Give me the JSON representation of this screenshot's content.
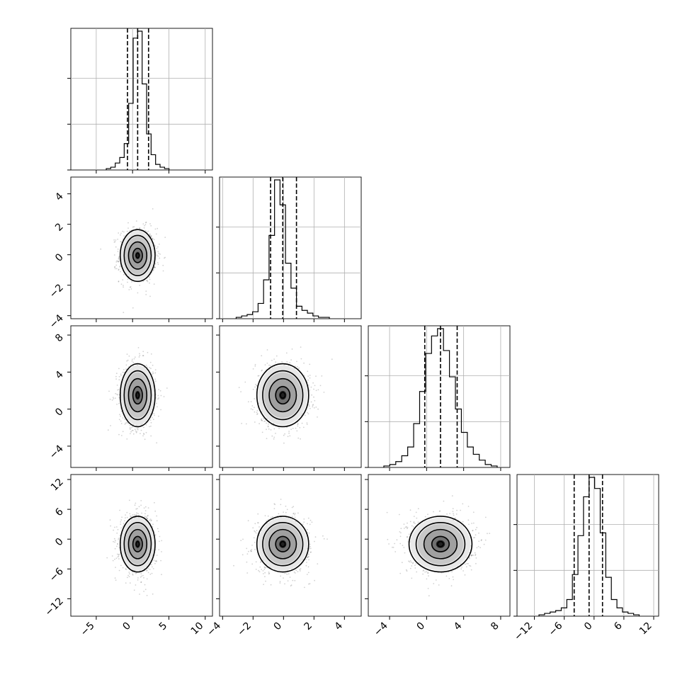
{
  "chart_data": {
    "type": "corner",
    "grid_on": true,
    "parameters": [
      {
        "index": 0,
        "ticks": [
          -5,
          0,
          5,
          10
        ],
        "tick_labels": [
          "−5",
          "0",
          "5",
          "10"
        ],
        "range": [
          -8.5,
          11
        ],
        "mean": 0.7,
        "sd": 1.2,
        "quantiles": [
          -0.7,
          0.7,
          2.2
        ]
      },
      {
        "index": 1,
        "ticks": [
          -4,
          -2,
          0,
          2,
          4
        ],
        "tick_labels": [
          "−4",
          "−2",
          "0",
          "2",
          "4"
        ],
        "range": [
          -4.2,
          5.1
        ],
        "mean": -0.05,
        "sd": 0.85,
        "quantiles": [
          -0.85,
          -0.05,
          0.85
        ]
      },
      {
        "index": 2,
        "ticks": [
          -4,
          0,
          4,
          8
        ],
        "tick_labels": [
          "−4",
          "0",
          "4",
          "8"
        ],
        "range": [
          -6.3,
          9.0
        ],
        "mean": 1.5,
        "sd": 1.7,
        "quantiles": [
          -0.2,
          1.5,
          3.3
        ]
      },
      {
        "index": 3,
        "ticks": [
          -12,
          -6,
          0,
          6,
          12
        ],
        "tick_labels": [
          "−12",
          "−6",
          "0",
          "6",
          "12"
        ],
        "range": [
          -15.5,
          13.0
        ],
        "mean": -1.0,
        "sd": 2.8,
        "quantiles": [
          -4.0,
          -1.0,
          1.7
        ]
      }
    ],
    "hist_counts": [
      [
        1,
        2,
        5,
        9,
        19,
        48,
        95,
        100,
        62,
        26,
        11,
        4,
        2,
        1
      ],
      [
        1,
        2,
        3,
        5,
        11,
        28,
        60,
        100,
        82,
        40,
        22,
        9,
        6,
        4,
        2,
        1,
        1
      ],
      [
        1,
        2,
        4,
        8,
        14,
        30,
        52,
        78,
        90,
        95,
        80,
        62,
        40,
        24,
        14,
        9,
        5,
        2,
        1
      ],
      [
        1,
        2,
        3,
        4,
        6,
        12,
        30,
        58,
        86,
        100,
        92,
        60,
        28,
        12,
        6,
        3,
        2,
        1
      ]
    ],
    "correlation": "none"
  }
}
